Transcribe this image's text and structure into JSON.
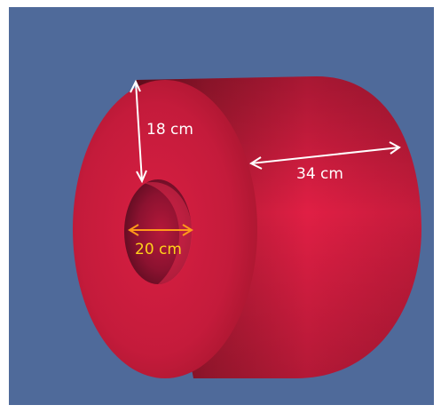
{
  "diagram": {
    "background_color": "#4f6a9a",
    "solid_color": "#cc1f3d",
    "labels": {
      "radial_thickness": "18 cm",
      "length": "34 cm",
      "inner_diameter": "20 cm"
    },
    "colors": {
      "dimension_line_white": "#ffffff",
      "dimension_line_inner": "#ff9a1a",
      "inner_label": "#ffd21a"
    }
  }
}
